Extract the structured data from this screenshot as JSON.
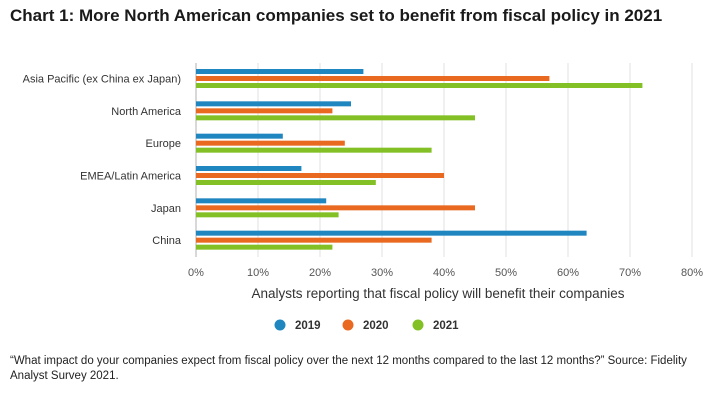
{
  "title": "Chart 1: More North American companies set to benefit from fiscal policy in 2021",
  "footnote": "“What impact do your companies expect from fiscal policy over the next 12 months compared to the last 12 months?” Source: Fidelity Analyst Survey 2021.",
  "chart_data": {
    "type": "bar",
    "orientation": "horizontal",
    "categories": [
      "Asia Pacific (ex China ex Japan)",
      "North America",
      "Europe",
      "EMEA/Latin America",
      "Japan",
      "China"
    ],
    "series": [
      {
        "name": "2019",
        "color": "#1f86c0",
        "values": [
          27,
          25,
          14,
          17,
          21,
          63
        ]
      },
      {
        "name": "2020",
        "color": "#e8691f",
        "values": [
          57,
          22,
          24,
          40,
          45,
          38
        ]
      },
      {
        "name": "2021",
        "color": "#82c026",
        "values": [
          72,
          45,
          38,
          29,
          23,
          22
        ]
      }
    ],
    "xlabel": "Analysts reporting that fiscal policy will benefit their companies",
    "xlim": [
      0,
      80
    ],
    "xticks": [
      "0%",
      "10%",
      "20%",
      "30%",
      "40%",
      "50%",
      "60%",
      "70%",
      "80%"
    ],
    "grid": "vertical",
    "legend": "bottom"
  }
}
